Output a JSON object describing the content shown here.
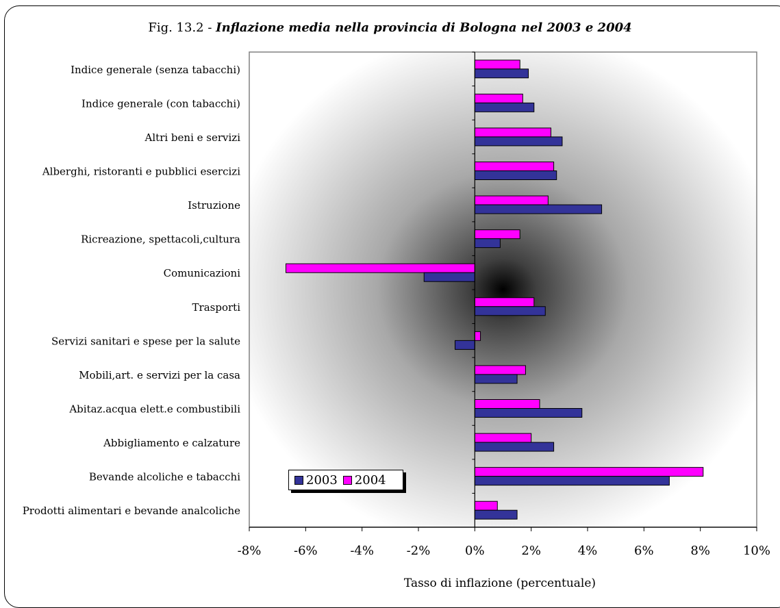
{
  "chart_data": {
    "type": "bar",
    "orientation": "horizontal",
    "title_prefix": "Fig. 13.2 - ",
    "title": "Inflazione media nella provincia di Bologna nel 2003 e 2004",
    "xlabel": "Tasso di inflazione (percentuale)",
    "ylabel": "",
    "xlim": [
      -8,
      10
    ],
    "xticks": [
      "-8%",
      "-6%",
      "-4%",
      "-2%",
      "0%",
      "2%",
      "4%",
      "6%",
      "8%",
      "10%"
    ],
    "categories": [
      "Prodotti alimentari e bevande analcoliche",
      "Bevande alcoliche e tabacchi",
      "Abbigliamento e calzature",
      "Abitaz.acqua elett.e combustibili",
      "Mobili,art. e servizi per la casa",
      "Servizi sanitari e spese per la salute",
      "Trasporti",
      "Comunicazioni",
      "Ricreazione, spettacoli,cultura",
      "Istruzione",
      "Alberghi, ristoranti  e pubblici esercizi",
      "Altri beni e servizi",
      "Indice generale (con tabacchi)",
      "Indice generale (senza tabacchi)"
    ],
    "series": [
      {
        "name": "2003",
        "color": "#333399",
        "values": [
          1.5,
          6.9,
          2.8,
          3.8,
          1.5,
          -0.7,
          2.5,
          -1.8,
          0.9,
          4.5,
          2.9,
          3.1,
          2.1,
          1.9
        ]
      },
      {
        "name": "2004",
        "color": "#FF00FF",
        "values": [
          0.8,
          8.1,
          2.0,
          2.3,
          1.8,
          0.2,
          2.1,
          -6.7,
          1.6,
          2.6,
          2.8,
          2.7,
          1.7,
          1.6
        ]
      }
    ],
    "legend_position": "bottom-left",
    "grid": false,
    "background": "radial grey gradient"
  }
}
